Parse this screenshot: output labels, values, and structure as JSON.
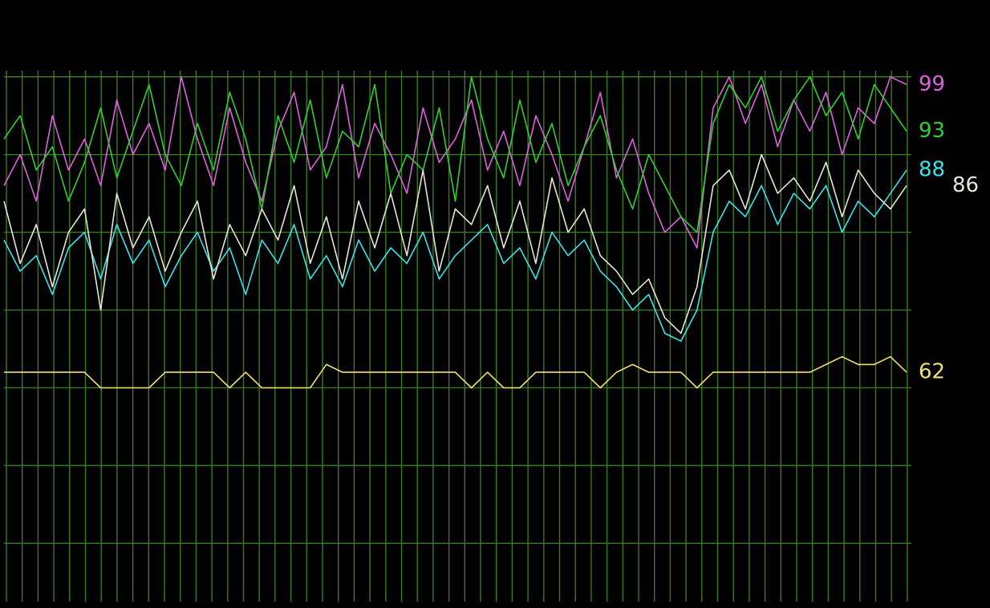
{
  "chart_data": {
    "type": "line",
    "ylim": [
      32.5,
      100.8
    ],
    "yticks": [
      40,
      50,
      60,
      70,
      80,
      90,
      100
    ],
    "grid": true,
    "series": [
      {
        "color": "#e060e0",
        "values": [
          86,
          90,
          84,
          95,
          88,
          92,
          86,
          97,
          90,
          94,
          88,
          100,
          92,
          86,
          96,
          89,
          84,
          93,
          98,
          88,
          91,
          99,
          87,
          94,
          90,
          85,
          96,
          89,
          92,
          97,
          88,
          93,
          86,
          95,
          90,
          84,
          91,
          98,
          87,
          92,
          85,
          80,
          82,
          78,
          96,
          100,
          94,
          99,
          91,
          97,
          93,
          98,
          90,
          96,
          94,
          100,
          99
        ]
      },
      {
        "color": "#2ed12e",
        "values": [
          92,
          95,
          88,
          91,
          84,
          89,
          96,
          87,
          93,
          99,
          90,
          86,
          94,
          88,
          98,
          92,
          83,
          95,
          89,
          97,
          87,
          93,
          91,
          99,
          85,
          90,
          88,
          96,
          84,
          100,
          92,
          87,
          97,
          89,
          94,
          86,
          91,
          95,
          88,
          83,
          90,
          86,
          82,
          80,
          94,
          99,
          96,
          100,
          93,
          97,
          100,
          95,
          98,
          92,
          99,
          96,
          93
        ]
      },
      {
        "color": "#38e4ec",
        "values": [
          79,
          75,
          77,
          72,
          78,
          80,
          74,
          81,
          76,
          79,
          73,
          77,
          80,
          75,
          78,
          72,
          79,
          76,
          81,
          74,
          77,
          73,
          79,
          75,
          78,
          76,
          80,
          74,
          77,
          79,
          81,
          76,
          78,
          74,
          80,
          77,
          79,
          75,
          73,
          70,
          72,
          67,
          66,
          70,
          80,
          84,
          82,
          86,
          81,
          85,
          83,
          86,
          80,
          84,
          82,
          85,
          88
        ]
      },
      {
        "color": "#e6e6d6",
        "values": [
          84,
          76,
          81,
          73,
          80,
          83,
          70,
          85,
          78,
          82,
          75,
          80,
          84,
          74,
          81,
          77,
          83,
          79,
          86,
          76,
          82,
          74,
          84,
          78,
          85,
          77,
          88,
          75,
          83,
          81,
          86,
          78,
          84,
          76,
          87,
          80,
          83,
          77,
          75,
          72,
          74,
          69,
          67,
          73,
          86,
          88,
          83,
          90,
          85,
          87,
          84,
          89,
          82,
          88,
          85,
          83,
          86
        ]
      },
      {
        "color": "#f2e070",
        "values": [
          62,
          62,
          62,
          62,
          62,
          62,
          60,
          60,
          60,
          60,
          62,
          62,
          62,
          62,
          60,
          62,
          60,
          60,
          60,
          60,
          63,
          62,
          62,
          62,
          62,
          62,
          62,
          62,
          62,
          60,
          62,
          60,
          60,
          62,
          62,
          62,
          62,
          60,
          62,
          63,
          62,
          62,
          62,
          60,
          62,
          62,
          62,
          62,
          62,
          62,
          62,
          63,
          64,
          63,
          63,
          64,
          62
        ]
      }
    ]
  }
}
